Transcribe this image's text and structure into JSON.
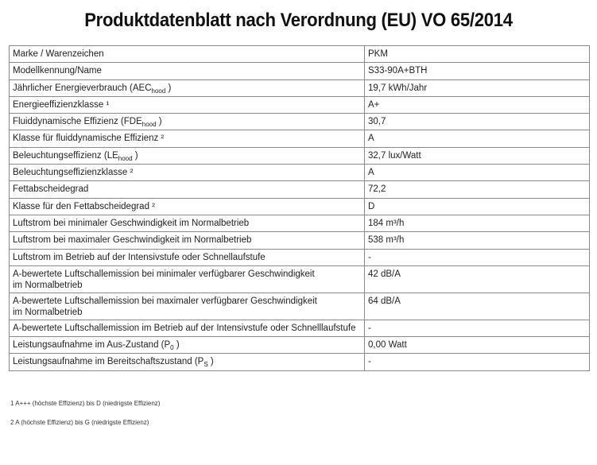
{
  "title": "Produktdatenblatt nach Verordnung (EU) VO 65/2014",
  "rows": [
    {
      "label": "Marke / Warenzeichen",
      "sub": "",
      "suffix": "",
      "value": "PKM"
    },
    {
      "label": "Modellkennung/Name",
      "sub": "",
      "suffix": "",
      "value": "S33-90A+BTH"
    },
    {
      "label": "Jährlicher Energieverbrauch (AEC",
      "sub": "hood",
      "suffix": " )",
      "value": "19,7 kWh/Jahr"
    },
    {
      "label": "Energieeffizienzklasse ¹",
      "sub": "",
      "suffix": "",
      "value": "A+"
    },
    {
      "label": "Fluiddynamische Effizienz (FDE",
      "sub": "hood",
      "suffix": " )",
      "value": "30,7"
    },
    {
      "label": "Klasse für fluiddynamische Effizienz ²",
      "sub": "",
      "suffix": "",
      "value": "A"
    },
    {
      "label": "Beleuchtungseffizienz (LE",
      "sub": "hood",
      "suffix": " )",
      "value": "32,7 lux/Watt"
    },
    {
      "label": "Beleuchtungseffizienzklasse ²",
      "sub": "",
      "suffix": "",
      "value": "A"
    },
    {
      "label": "Fettabscheidegrad",
      "sub": "",
      "suffix": "",
      "value": "72,2"
    },
    {
      "label": "Klasse für den Fettabscheidegrad ²",
      "sub": "",
      "suffix": "",
      "value": "D"
    },
    {
      "label": "Luftstrom bei minimaler Geschwindigkeit im Normalbetrieb",
      "sub": "",
      "suffix": "",
      "value": "184 m³/h"
    },
    {
      "label": "Luftstrom bei maximaler Geschwindigkeit im Normalbetrieb",
      "sub": "",
      "suffix": "",
      "value": "538 m³/h"
    },
    {
      "label": "Luftstrom im Betrieb auf der Intensivstufe oder Schnellaufstufe",
      "sub": "",
      "suffix": "",
      "value": "-"
    },
    {
      "label": "A-bewertete Luftschallemission bei minimaler verfügbarer Geschwindigkeit",
      "label2": "im Normalbetrieb",
      "sub": "",
      "suffix": "",
      "value": "42 dB/A"
    },
    {
      "label": "A-bewertete Luftschallemission bei maximaler verfügbarer Geschwindigkeit",
      "label2": "im Normalbetrieb",
      "sub": "",
      "suffix": "",
      "value": "64 dB/A"
    },
    {
      "label": "A-bewertete Luftschallemission im Betrieb auf der Intensivstufe oder Schnelllaufstufe",
      "sub": "",
      "suffix": "",
      "value": "-"
    },
    {
      "label": "Leistungsaufnahme im Aus-Zustand (P",
      "sub": "0",
      "suffix": " )",
      "value": "0,00 Watt"
    },
    {
      "label": "Leistungsaufnahme im Bereitschaftszustand (P",
      "sub": "S",
      "suffix": " )",
      "value": "-"
    }
  ],
  "footnotes": [
    "1 A+++ (höchste Effizienz) bis D (niedrigste Effizienz)",
    "2 A (höchste Effizienz) bis G (niedrigste Effizienz)"
  ]
}
